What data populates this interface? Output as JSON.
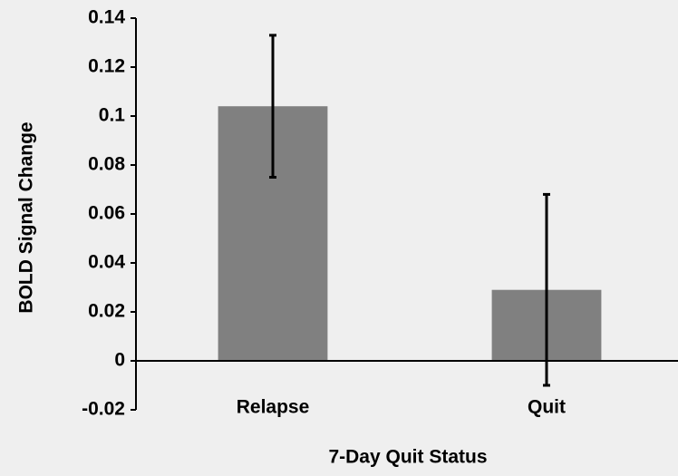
{
  "chart_data": {
    "type": "bar",
    "x_label": "7-Day Quit Status",
    "y_label": "BOLD Signal Change",
    "categories": [
      "Relapse",
      "Quit"
    ],
    "values": [
      0.104,
      0.029
    ],
    "errors": [
      0.029,
      0.039
    ],
    "color": "#808080",
    "ylim": [
      -0.02,
      0.14
    ],
    "yticks": [
      -0.02,
      0,
      0.02,
      0.04,
      0.06,
      0.08,
      0.1,
      0.12,
      0.14
    ],
    "grid": false
  }
}
